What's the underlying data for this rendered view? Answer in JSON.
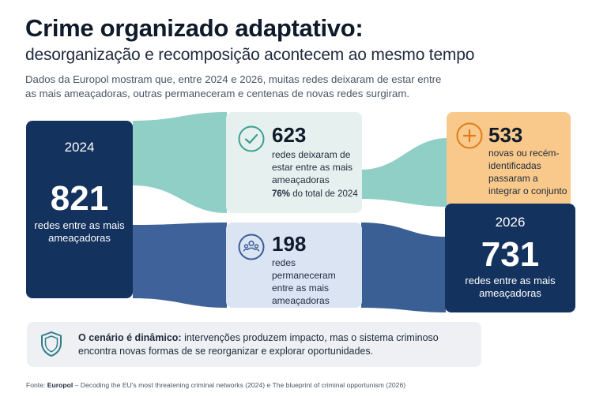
{
  "header": {
    "title": "Crime organizado adaptativo:",
    "subtitle": "desorganização e recomposição acontecem ao mesmo tempo",
    "intro": "Dados da Europol mostram que, entre 2024 e 2026, muitas redes deixaram de estar entre as mais ameaçadoras, outras permaneceram e centenas de novas redes surgiram."
  },
  "nodes": {
    "start": {
      "year": "2024",
      "value": "821",
      "label": "redes entre as mais ameaçadoras"
    },
    "left_list": {
      "value": "623",
      "label": "redes deixaram de estar entre as mais ameaçadoras",
      "share_value": "76%",
      "share_label": "do total de 2024",
      "icon": "check-circle-icon"
    },
    "remained": {
      "value": "198",
      "label": "redes permaneceram entre as mais ameaçadoras",
      "icon": "network-people-icon"
    },
    "new_entries": {
      "value": "533",
      "label": "novas ou recém-identificadas passaram a integrar o conjunto",
      "icon": "plus-circle-icon"
    },
    "end": {
      "year": "2026",
      "value": "731",
      "label": "redes entre as mais ameaçadoras"
    }
  },
  "note": {
    "bold": "O cenário é dinâmico:",
    "text": " intervenções produzem impacto, mas o sistema criminoso encontra novas formas de se reorganizar e explorar oportunidades.",
    "icon": "shield-icon"
  },
  "source": {
    "prefix": "Fonte: ",
    "org": "Europol",
    "text": " – Decoding the EU's most threatening criminal networks (2024) e The blueprint of criminal opportunism (2026)"
  },
  "colors": {
    "navy": "#13325e",
    "teal_flow": "#7fc7bd",
    "blue_flow": "#3a5f95",
    "orange": "#f8c98a",
    "orange_icon": "#e07b18",
    "teal_icon": "#3a9f8f",
    "blue_icon": "#3b5b95"
  }
}
